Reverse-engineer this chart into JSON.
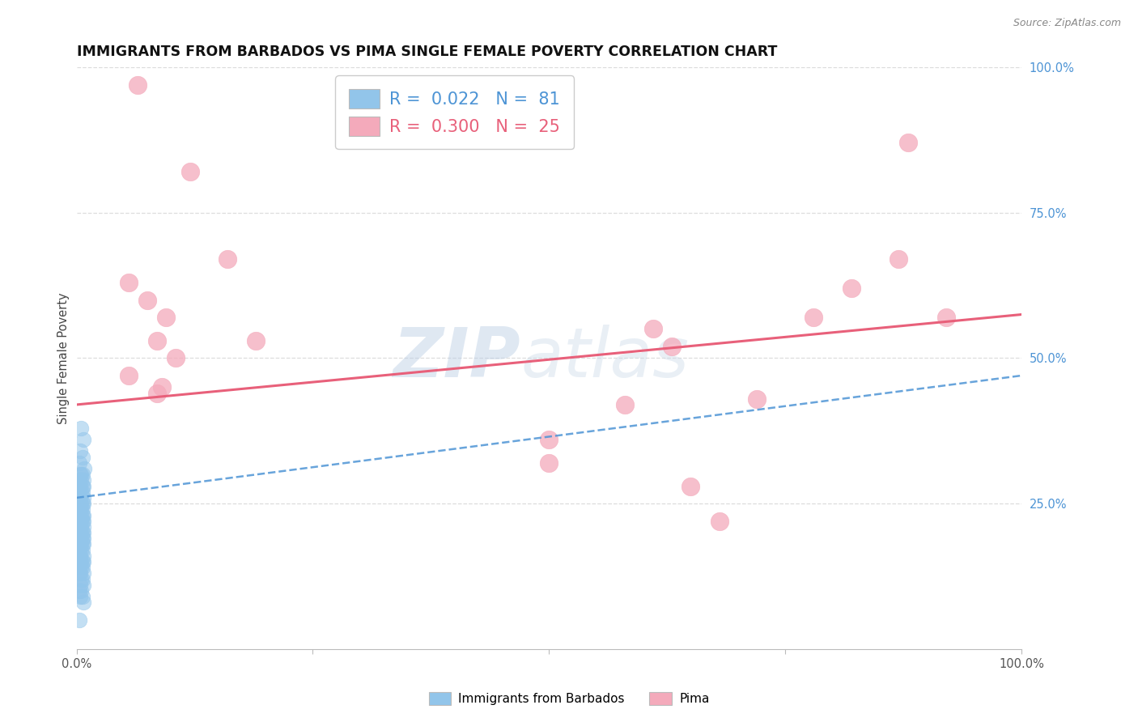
{
  "title": "IMMIGRANTS FROM BARBADOS VS PIMA SINGLE FEMALE POVERTY CORRELATION CHART",
  "source": "Source: ZipAtlas.com",
  "ylabel": "Single Female Poverty",
  "xlim": [
    0,
    1.0
  ],
  "ylim": [
    0,
    1.0
  ],
  "R_blue": "0.022",
  "N_blue": "81",
  "R_pink": "0.300",
  "N_pink": "25",
  "blue_color": "#92C5EA",
  "pink_color": "#F4AABB",
  "blue_line_color": "#4D94D5",
  "pink_line_color": "#E8607A",
  "blue_line_y_intercept": 0.26,
  "blue_line_slope": 0.21,
  "pink_line_y_intercept": 0.42,
  "pink_line_slope": 0.155,
  "title_fontsize": 12.5,
  "legend_label_blue": "Immigrants from Barbados",
  "legend_label_pink": "Pima",
  "watermark_zip": "ZIP",
  "watermark_atlas": "atlas",
  "background_color": "#FFFFFF",
  "grid_color": "#DDDDDD",
  "blue_scatter_x": [
    0.005,
    0.007,
    0.004,
    0.006,
    0.003,
    0.008,
    0.005,
    0.006,
    0.004,
    0.007,
    0.003,
    0.005,
    0.006,
    0.004,
    0.007,
    0.003,
    0.005,
    0.006,
    0.004,
    0.007,
    0.003,
    0.005,
    0.006,
    0.004,
    0.007,
    0.003,
    0.005,
    0.006,
    0.004,
    0.007,
    0.003,
    0.005,
    0.006,
    0.004,
    0.007,
    0.003,
    0.005,
    0.006,
    0.004,
    0.007,
    0.003,
    0.005,
    0.006,
    0.004,
    0.007,
    0.003,
    0.005,
    0.006,
    0.004,
    0.007,
    0.003,
    0.005,
    0.006,
    0.004,
    0.007,
    0.003,
    0.005,
    0.006,
    0.004,
    0.007,
    0.003,
    0.005,
    0.006,
    0.004,
    0.007,
    0.003,
    0.005,
    0.006,
    0.004,
    0.007,
    0.003,
    0.005,
    0.006,
    0.004,
    0.007,
    0.003,
    0.005,
    0.006,
    0.004,
    0.007,
    0.003
  ],
  "blue_scatter_y": [
    0.38,
    0.36,
    0.34,
    0.33,
    0.32,
    0.31,
    0.3,
    0.3,
    0.3,
    0.29,
    0.29,
    0.29,
    0.28,
    0.28,
    0.28,
    0.27,
    0.27,
    0.27,
    0.26,
    0.26,
    0.26,
    0.25,
    0.25,
    0.25,
    0.25,
    0.24,
    0.24,
    0.24,
    0.24,
    0.23,
    0.23,
    0.23,
    0.23,
    0.22,
    0.22,
    0.22,
    0.22,
    0.22,
    0.21,
    0.21,
    0.21,
    0.21,
    0.2,
    0.2,
    0.2,
    0.2,
    0.2,
    0.19,
    0.19,
    0.19,
    0.19,
    0.18,
    0.18,
    0.18,
    0.18,
    0.17,
    0.17,
    0.17,
    0.16,
    0.16,
    0.16,
    0.15,
    0.15,
    0.15,
    0.15,
    0.14,
    0.14,
    0.14,
    0.13,
    0.13,
    0.13,
    0.12,
    0.12,
    0.11,
    0.11,
    0.1,
    0.1,
    0.09,
    0.09,
    0.08,
    0.05
  ],
  "pink_scatter_x": [
    0.065,
    0.055,
    0.075,
    0.095,
    0.085,
    0.105,
    0.055,
    0.085,
    0.12,
    0.16,
    0.19,
    0.09,
    0.5,
    0.5,
    0.61,
    0.63,
    0.65,
    0.68,
    0.72,
    0.78,
    0.82,
    0.87,
    0.92,
    0.88,
    0.58
  ],
  "pink_scatter_y": [
    0.97,
    0.63,
    0.6,
    0.57,
    0.53,
    0.5,
    0.47,
    0.44,
    0.82,
    0.67,
    0.53,
    0.45,
    0.36,
    0.32,
    0.55,
    0.52,
    0.28,
    0.22,
    0.43,
    0.57,
    0.62,
    0.67,
    0.57,
    0.87,
    0.42
  ]
}
